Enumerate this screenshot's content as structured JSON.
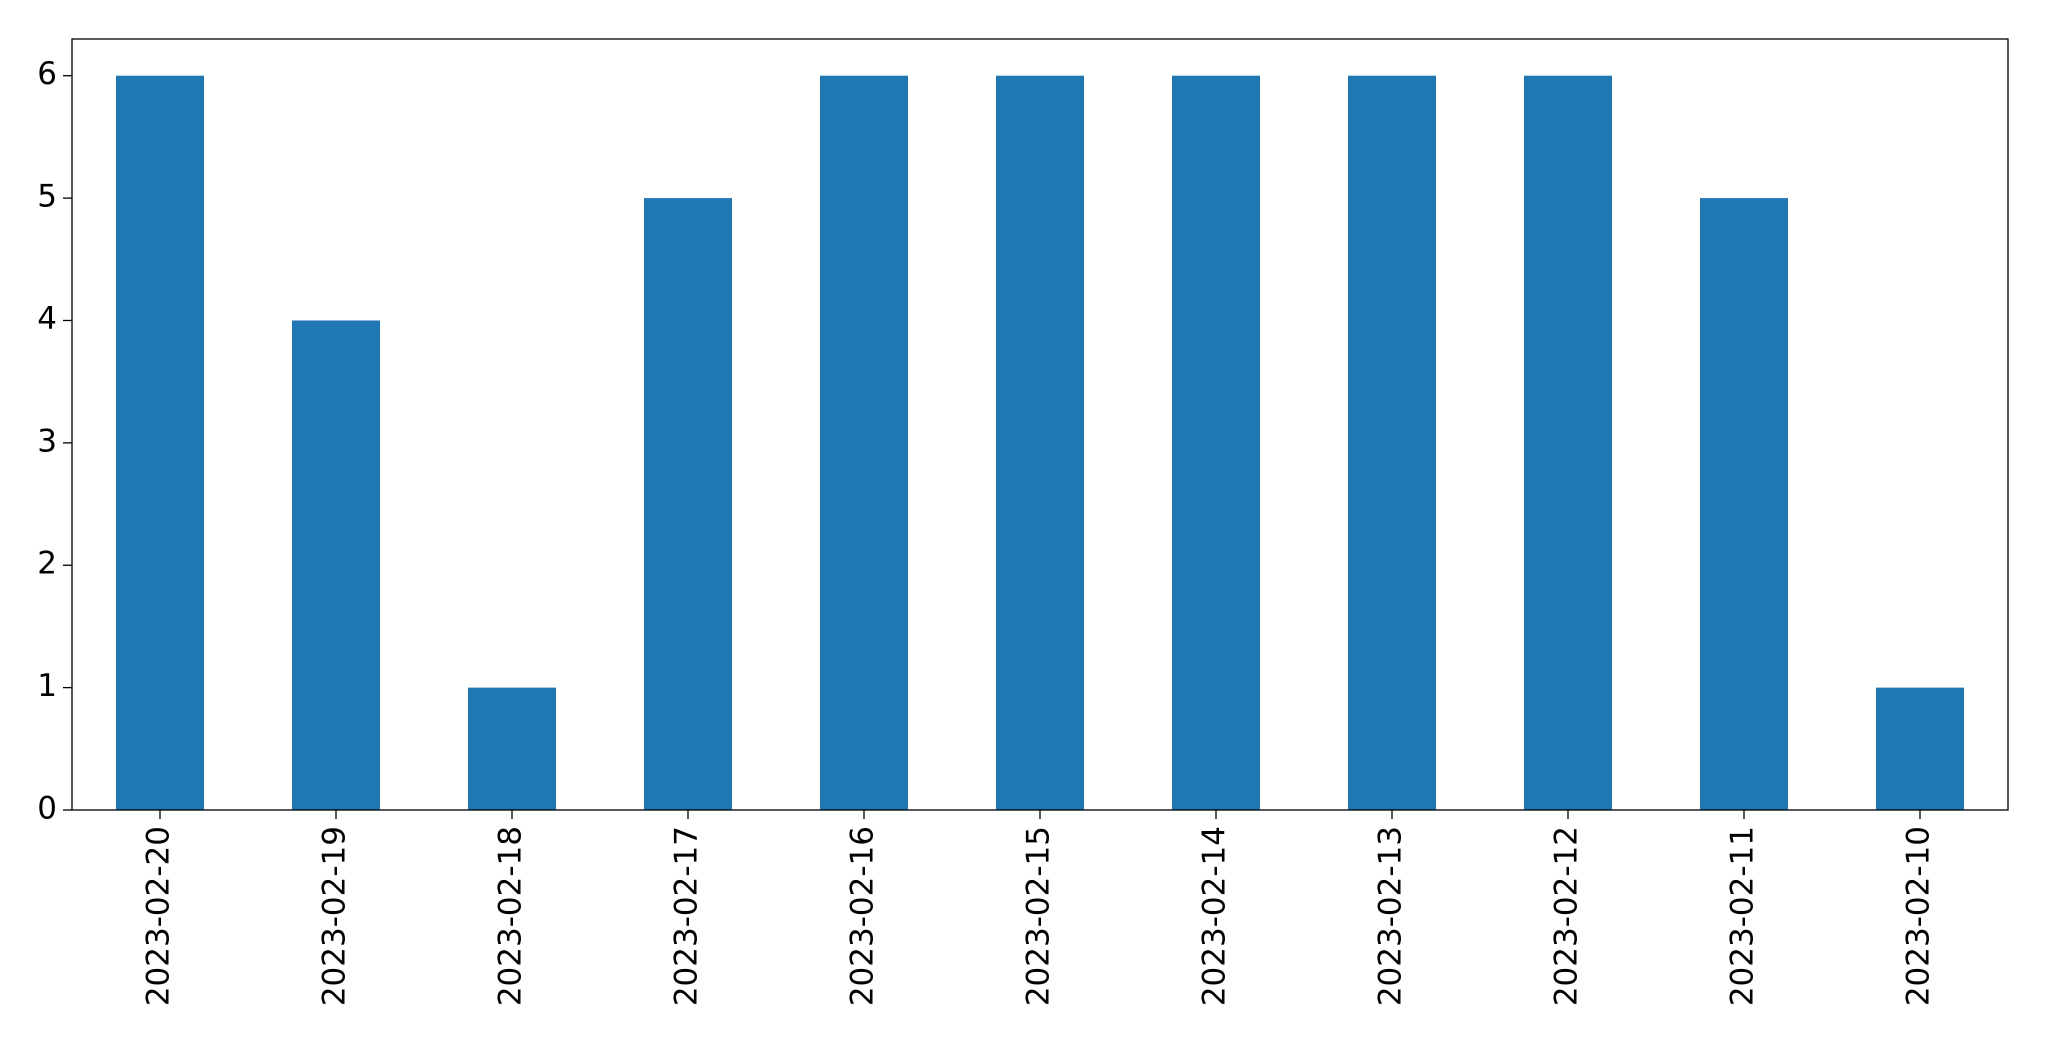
{
  "chart_data": {
    "type": "bar",
    "categories": [
      "2023-02-20",
      "2023-02-19",
      "2023-02-18",
      "2023-02-17",
      "2023-02-16",
      "2023-02-15",
      "2023-02-14",
      "2023-02-13",
      "2023-02-12",
      "2023-02-11",
      "2023-02-10"
    ],
    "values": [
      6,
      4,
      1,
      5,
      6,
      6,
      6,
      6,
      6,
      5,
      1
    ],
    "color": "#1f77b4",
    "ylim": [
      0,
      6.3
    ],
    "yticks": [
      0,
      1,
      2,
      3,
      4,
      5,
      6
    ],
    "grid": false
  }
}
